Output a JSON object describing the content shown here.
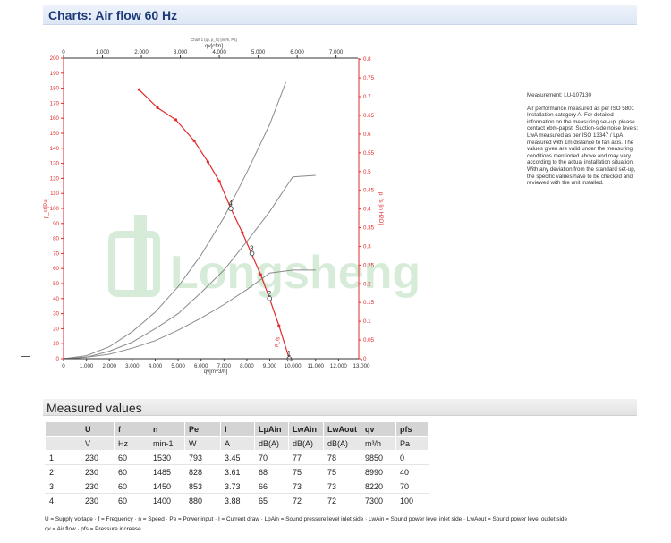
{
  "header": {
    "title": "Charts: Air flow 60 Hz"
  },
  "chart_data": {
    "type": "line",
    "top_caption": "Chart 1 (qv, p_fs) [m³/h, Pa]",
    "xlabel_bottom": "qv[m^3/h]",
    "xlabel_top": "qv[cfm]",
    "ylabel_left": "p_st[Pa]",
    "ylabel_right": "p_fs [in H2O]",
    "x_bottom_ticks": [
      "0",
      "1.000",
      "2.000",
      "3.000",
      "4.000",
      "5.000",
      "6.000",
      "7.000",
      "8.000",
      "9.000",
      "10.000",
      "11.000",
      "12.000",
      "13.000"
    ],
    "x_top_ticks": [
      "0",
      "1.000",
      "2.000",
      "3.000",
      "4.000",
      "5.000",
      "6.000",
      "7.000"
    ],
    "y_left_ticks": [
      "0",
      "10",
      "20",
      "30",
      "40",
      "50",
      "60",
      "70",
      "80",
      "90",
      "100",
      "110",
      "120",
      "130",
      "140",
      "150",
      "160",
      "170",
      "180",
      "190",
      "200"
    ],
    "y_right_ticks": [
      "0",
      "0.05",
      "0.1",
      "0.15",
      "0.2",
      "0.25",
      "0.3",
      "0.35",
      "0.4",
      "0.45",
      "0.5",
      "0.55",
      "0.6",
      "0.65",
      "0.7",
      "0.75",
      "0.8"
    ],
    "xlim": [
      0,
      13000
    ],
    "ylim": [
      0,
      200
    ],
    "grid": false,
    "series": [
      {
        "role": "system-curve",
        "x": [
          0,
          1000,
          2000,
          3000,
          4000,
          5000,
          6000,
          7000,
          8000,
          9000,
          9700
        ],
        "y": [
          0,
          2,
          8,
          18,
          31,
          48,
          69,
          94,
          124,
          156,
          184
        ]
      },
      {
        "role": "system-curve",
        "x": [
          0,
          1000,
          2000,
          3000,
          4000,
          5000,
          6000,
          7000,
          8000,
          9000,
          10000,
          11000
        ],
        "y": [
          0,
          1,
          5,
          11,
          20,
          30,
          44,
          59,
          78,
          98,
          121,
          122
        ]
      },
      {
        "role": "system-curve",
        "x": [
          0,
          1000,
          2000,
          3000,
          4000,
          5000,
          6000,
          7000,
          8000,
          9000,
          10000,
          11000
        ],
        "y": [
          0,
          1,
          3,
          7,
          12,
          19,
          27,
          36,
          46,
          57,
          59,
          59
        ]
      },
      {
        "role": "fan-curve",
        "x": [
          3300,
          4100,
          4900,
          5700,
          6300,
          6800,
          7300,
          7800,
          8200,
          8600,
          8990,
          9400,
          9850
        ],
        "y": [
          179,
          167,
          159,
          145,
          131,
          118,
          100,
          84,
          70,
          56,
          40,
          22,
          0
        ]
      }
    ],
    "operating_points": [
      {
        "label": "1",
        "x": 9850,
        "y": 0
      },
      {
        "label": "2",
        "x": 8990,
        "y": 40
      },
      {
        "label": "3",
        "x": 8220,
        "y": 70
      },
      {
        "label": "4",
        "x": 7300,
        "y": 100
      }
    ],
    "curve_label": "p_fs",
    "watermark": "Longsheng",
    "colors": {
      "fan": "#e22b2b",
      "system": "#8a8a8a",
      "axis_left": "#e22b2b",
      "axis_right": "#e22b2b",
      "watermark": "#d7ecd8"
    }
  },
  "notes": {
    "measurement": "Measurement: LU-107130",
    "text": "Air performance measured as per ISO 5801 Installation category A. For detailed information on the measuring set-up, please contact ebm-papst. Suction-side noise levels: LwA measured as per ISO 13347 / LpA measured with 1m distance to fan axis. The values given are valid under the measuring conditions mentioned above and may vary according to the actual installation situation. With any deviation from the standard set-up, the specific values have to be checked and reviewed with the unit installed."
  },
  "measured": {
    "title": "Measured values",
    "headers": [
      "",
      "U",
      "f",
      "n",
      "Pe",
      "I",
      "LpAin",
      "LwAin",
      "LwAout",
      "qv",
      "pfs"
    ],
    "units": [
      "",
      "V",
      "Hz",
      "min-1",
      "W",
      "A",
      "dB(A)",
      "dB(A)",
      "dB(A)",
      "m³/h",
      "Pa"
    ],
    "rows": [
      [
        "1",
        "230",
        "60",
        "1530",
        "793",
        "3.45",
        "70",
        "77",
        "78",
        "9850",
        "0"
      ],
      [
        "2",
        "230",
        "60",
        "1485",
        "828",
        "3.61",
        "68",
        "75",
        "75",
        "8990",
        "40"
      ],
      [
        "3",
        "230",
        "60",
        "1450",
        "853",
        "3.73",
        "66",
        "73",
        "73",
        "8220",
        "70"
      ],
      [
        "4",
        "230",
        "60",
        "1400",
        "880",
        "3.88",
        "65",
        "72",
        "72",
        "7300",
        "100"
      ]
    ]
  },
  "legend": {
    "line1": "U = Supply voltage · f = Frequency · n = Speed · Pe = Power input · I = Current draw · LpAin = Sound pressure level inlet side · LwAin = Sound power level inlet side · LwAout = Sound power level outlet side",
    "line2": "qv = Air flow · pfs = Pressure increase"
  }
}
